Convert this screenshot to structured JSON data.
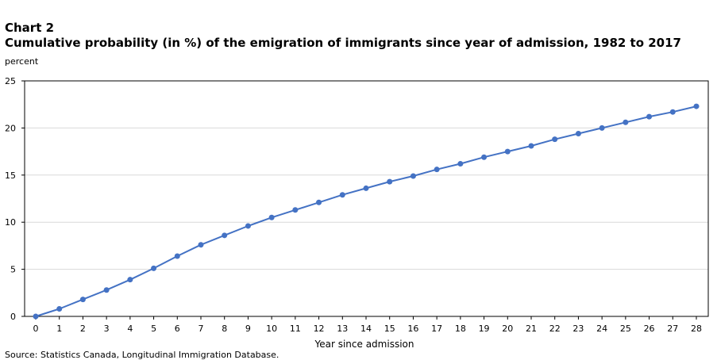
{
  "chart_data": {
    "type": "line",
    "label": "Chart 2",
    "title": "Cumulative probability (in %) of the emigration of immigrants since year of admission, 1982 to 2017",
    "ylabel": "percent",
    "xlabel": "Year since admission",
    "source": "Source: Statistics Canada, Longitudinal Immigration Database.",
    "ylim": [
      0,
      25
    ],
    "yticks": [
      0,
      5,
      10,
      15,
      20,
      25
    ],
    "grid": true,
    "legend": "none",
    "color": "#4472c4",
    "x": [
      0,
      1,
      2,
      3,
      4,
      5,
      6,
      7,
      8,
      9,
      10,
      11,
      12,
      13,
      14,
      15,
      16,
      17,
      18,
      19,
      20,
      21,
      22,
      23,
      24,
      25,
      26,
      27,
      28
    ],
    "series": [
      {
        "values": [
          0,
          0.8,
          1.8,
          2.8,
          3.9,
          5.1,
          6.4,
          7.6,
          8.6,
          9.6,
          10.5,
          11.3,
          12.1,
          12.9,
          13.6,
          14.3,
          14.9,
          15.6,
          16.2,
          16.9,
          17.5,
          18.1,
          18.8,
          19.4,
          20.0,
          20.6,
          21.2,
          21.7,
          22.3
        ]
      }
    ]
  }
}
